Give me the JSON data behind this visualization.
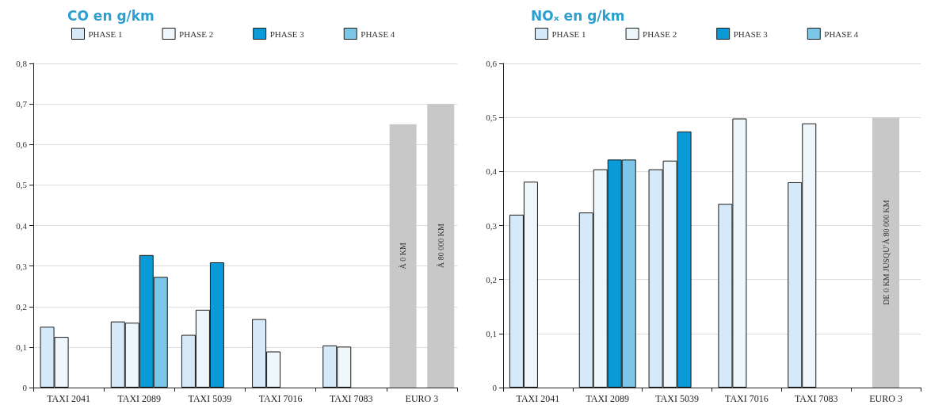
{
  "chart_data": [
    {
      "type": "bar",
      "title": "CO en g/km",
      "categories": [
        "TAXI 2041",
        "TAXI 2089",
        "TAXI 5039",
        "TAXI 7016",
        "TAXI 7083",
        "EURO 3"
      ],
      "series": [
        {
          "name": "PHASE 1",
          "color": "#d6e9f8",
          "values": [
            0.15,
            0.163,
            0.13,
            0.169,
            0.104,
            null
          ]
        },
        {
          "name": "PHASE 2",
          "color": "#eef7fb",
          "values": [
            0.125,
            0.16,
            0.192,
            0.089,
            0.101,
            null
          ]
        },
        {
          "name": "PHASE 3",
          "color": "#0a9ad8",
          "values": [
            null,
            0.327,
            0.309,
            null,
            null,
            null
          ]
        },
        {
          "name": "PHASE 4",
          "color": "#7cc6e8",
          "values": [
            null,
            0.273,
            null,
            null,
            null,
            null
          ]
        },
        {
          "name": "À 0 KM",
          "color": "#c8c8c8",
          "values": [
            null,
            null,
            null,
            null,
            null,
            0.65
          ]
        },
        {
          "name": "À 80 000 KM",
          "color": "#c8c8c8",
          "values": [
            null,
            null,
            null,
            null,
            null,
            0.7
          ]
        }
      ],
      "ylim": [
        0,
        0.8
      ],
      "yticks": [
        0,
        {
          "value": 0.1,
          "label": "0,1"
        },
        {
          "value": 0.2,
          "label": "0,2"
        },
        {
          "value": 0.3,
          "label": "0,3"
        },
        {
          "value": 0.4,
          "label": "0,4"
        },
        {
          "value": 0.5,
          "label": "0,5"
        },
        {
          "value": 0.6,
          "label": "0,6"
        },
        {
          "value": 0.7,
          "label": "0,7"
        },
        {
          "value": 0.8,
          "label": "0,8"
        }
      ],
      "grid": "y",
      "legend": "top"
    },
    {
      "type": "bar",
      "title": "NOₓ en g/km",
      "categories": [
        "TAXI 2041",
        "TAXI 2089",
        "TAXI 5039",
        "TAXI 7016",
        "TAXI 7083",
        "EURO 3"
      ],
      "series": [
        {
          "name": "PHASE 1",
          "color": "#d6e9f8",
          "values": [
            0.32,
            0.324,
            0.404,
            0.34,
            0.38,
            null
          ]
        },
        {
          "name": "PHASE 2",
          "color": "#eef7fb",
          "values": [
            0.381,
            0.404,
            0.42,
            0.498,
            0.489,
            null
          ]
        },
        {
          "name": "PHASE 3",
          "color": "#0a9ad8",
          "values": [
            null,
            0.422,
            0.474,
            null,
            null,
            null
          ]
        },
        {
          "name": "PHASE 4",
          "color": "#7cc6e8",
          "values": [
            null,
            0.422,
            null,
            null,
            null,
            null
          ]
        },
        {
          "name": "DE 0 KM JUSQU’À 80 000 KM",
          "color": "#c8c8c8",
          "values": [
            null,
            null,
            null,
            null,
            null,
            0.5
          ]
        }
      ],
      "ylim": [
        0,
        0.6
      ],
      "yticks": [
        0,
        {
          "value": 0.1,
          "label": "0,1"
        },
        {
          "value": 0.2,
          "label": "0,2"
        },
        {
          "value": 0.3,
          "label": "0,3"
        },
        {
          "value": 0.4,
          "label": "0,4"
        },
        {
          "value": 0.5,
          "label": "0,5"
        },
        {
          "value": 0.6,
          "label": "0,6"
        }
      ],
      "grid": "y",
      "legend": "top"
    }
  ]
}
